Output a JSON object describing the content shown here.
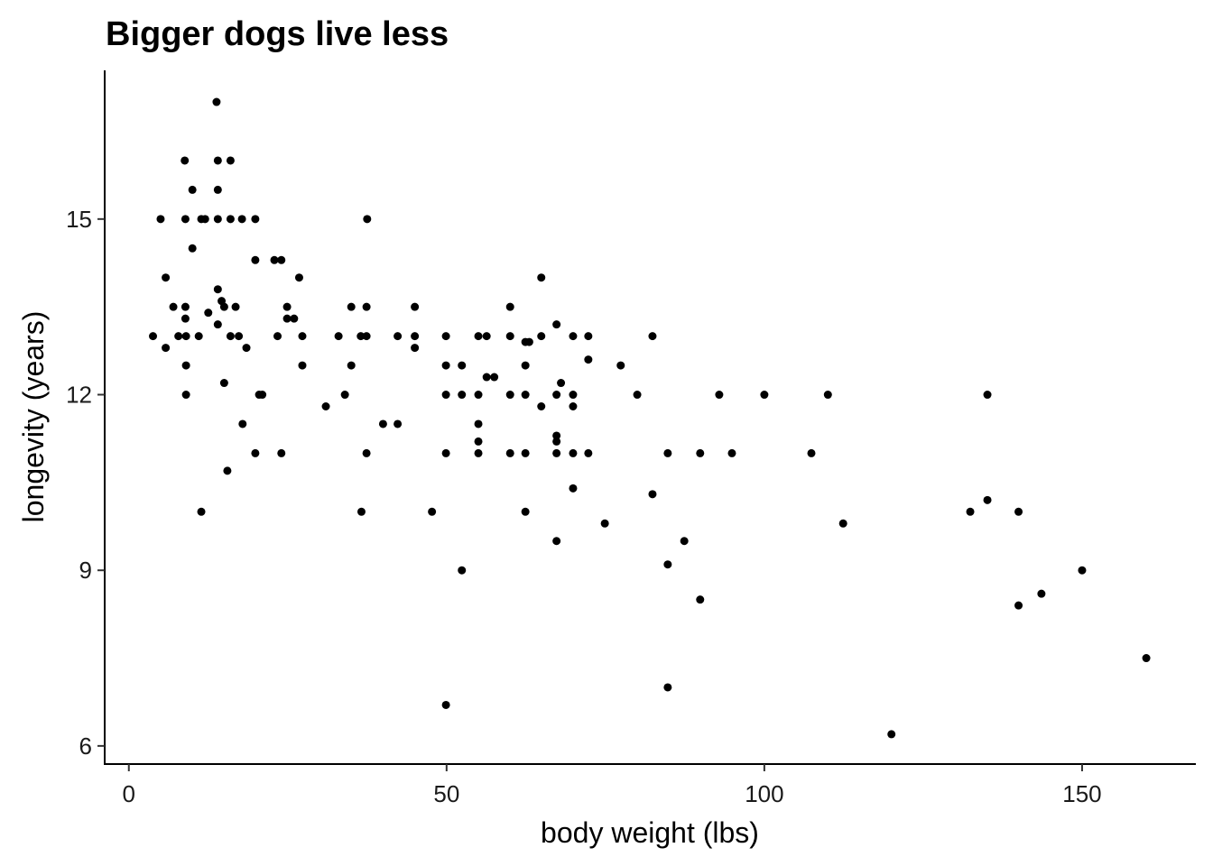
{
  "chart_data": {
    "type": "scatter",
    "title": "Bigger dogs live less",
    "x_label": "body weight (lbs)",
    "y_label": "longevity (years)",
    "color": "#000000",
    "grid": false,
    "xlim": [
      -3.8,
      167.9
    ],
    "xticks": [
      0,
      50,
      100,
      150
    ],
    "ylim": [
      5.69,
      17.54
    ],
    "yticks": [
      6,
      9,
      12,
      15
    ],
    "x": [
      3.8,
      5.0,
      5.8,
      5.8,
      7.0,
      7.8,
      8.8,
      8.9,
      8.9,
      8.9,
      9.0,
      9.0,
      9.0,
      10.0,
      10.0,
      11.0,
      11.4,
      11.4,
      12.0,
      12.5,
      13.8,
      14.0,
      14.0,
      14.0,
      14.0,
      14.0,
      14.6,
      15.0,
      15.0,
      15.5,
      16.0,
      16.0,
      16.0,
      16.8,
      17.3,
      17.8,
      17.9,
      18.5,
      19.9,
      19.9,
      19.9,
      20.5,
      21.0,
      22.9,
      23.4,
      24.0,
      24.0,
      24.9,
      24.9,
      26.0,
      26.8,
      27.3,
      27.3,
      31.0,
      33.0,
      34.0,
      35.0,
      35.0,
      36.5,
      36.6,
      37.4,
      37.4,
      37.4,
      37.5,
      40.0,
      42.3,
      42.3,
      45.0,
      45.0,
      45.0,
      47.7,
      49.9,
      49.9,
      49.9,
      49.9,
      49.9,
      52.4,
      52.4,
      52.4,
      55.0,
      55.0,
      55.0,
      55.0,
      55.0,
      56.3,
      56.3,
      57.5,
      60.0,
      60.0,
      60.0,
      60.0,
      62.4,
      62.4,
      63.0,
      62.4,
      62.4,
      62.4,
      64.9,
      64.9,
      64.9,
      67.3,
      67.3,
      67.3,
      67.3,
      67.3,
      67.3,
      68.0,
      69.9,
      69.9,
      69.9,
      69.9,
      69.9,
      72.3,
      72.3,
      72.3,
      74.9,
      77.4,
      80.0,
      82.4,
      82.4,
      84.8,
      84.8,
      84.8,
      87.4,
      89.9,
      89.9,
      92.9,
      94.9,
      100.0,
      107.4,
      110.0,
      112.4,
      120.0,
      132.4,
      135.1,
      135.1,
      140.0,
      140.0,
      143.6,
      150.0,
      160.1
    ],
    "y": [
      13.0,
      15.0,
      14.0,
      12.8,
      13.5,
      13.0,
      16.0,
      15.0,
      13.5,
      13.3,
      13.0,
      12.5,
      12.0,
      15.5,
      14.5,
      13.0,
      15.0,
      10.0,
      15.0,
      13.4,
      17.0,
      16.0,
      15.5,
      15.0,
      13.8,
      13.2,
      13.6,
      13.5,
      12.2,
      10.7,
      16.0,
      15.0,
      13.0,
      13.5,
      13.0,
      15.0,
      11.5,
      12.8,
      15.0,
      14.3,
      11.0,
      12.0,
      12.0,
      14.3,
      13.0,
      14.3,
      11.0,
      13.5,
      13.3,
      13.3,
      14.0,
      13.0,
      12.5,
      11.8,
      13.0,
      12.0,
      13.5,
      12.5,
      13.0,
      10.0,
      13.5,
      13.0,
      11.0,
      15.0,
      11.5,
      13.0,
      11.5,
      13.5,
      13.0,
      12.8,
      10.0,
      13.0,
      12.5,
      12.0,
      11.0,
      6.7,
      12.5,
      12.0,
      9.0,
      13.0,
      12.0,
      11.5,
      11.2,
      11.0,
      13.0,
      12.3,
      12.3,
      13.5,
      13.0,
      12.0,
      11.0,
      12.5,
      12.9,
      12.9,
      12.0,
      11.0,
      10.0,
      14.0,
      13.0,
      11.8,
      13.2,
      12.0,
      11.3,
      11.2,
      11.0,
      9.5,
      12.2,
      13.0,
      12.0,
      11.8,
      11.0,
      10.4,
      13.0,
      12.6,
      11.0,
      9.8,
      12.5,
      12.0,
      13.0,
      10.3,
      11.0,
      9.1,
      7.0,
      9.5,
      11.0,
      8.5,
      12.0,
      11.0,
      12.0,
      11.0,
      12.0,
      9.8,
      6.2,
      10.0,
      12.0,
      10.2,
      10.0,
      8.4,
      8.6,
      9.0,
      7.5
    ]
  }
}
